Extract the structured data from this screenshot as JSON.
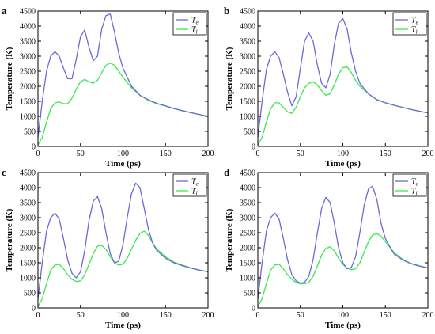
{
  "colors": {
    "electron": "#6a6ad8",
    "lattice": "#3ce850",
    "overlap": "#2f8f86"
  },
  "chart_data": [
    {
      "panel": "a",
      "type": "line",
      "xlabel": "Time (ps)",
      "ylabel": "Temperature (K)",
      "xlim": [
        0,
        200
      ],
      "ylim": [
        0,
        4500
      ],
      "xticks": [
        0,
        50,
        100,
        150,
        200
      ],
      "yticks": [
        0,
        500,
        1000,
        1500,
        2000,
        2500,
        3000,
        3500,
        4000,
        4500
      ],
      "grid": false,
      "legend_position": "top-right",
      "legend": [
        "Te",
        "Tl"
      ],
      "series": [
        {
          "name": "Te",
          "x": [
            0,
            5,
            10,
            15,
            20,
            25,
            30,
            35,
            40,
            45,
            50,
            55,
            60,
            65,
            70,
            75,
            80,
            85,
            90,
            95,
            100,
            110,
            120,
            130,
            140,
            150,
            160,
            170,
            180,
            190,
            200
          ],
          "y": [
            300,
            1500,
            2500,
            3000,
            3150,
            3000,
            2600,
            2250,
            2250,
            2900,
            3650,
            3870,
            3300,
            2850,
            3000,
            3900,
            4350,
            4400,
            3800,
            3100,
            2600,
            2000,
            1700,
            1550,
            1430,
            1350,
            1260,
            1190,
            1120,
            1060,
            1000
          ]
        },
        {
          "name": "Tl",
          "x": [
            0,
            5,
            10,
            15,
            20,
            25,
            30,
            35,
            40,
            45,
            50,
            55,
            60,
            65,
            70,
            75,
            80,
            85,
            90,
            95,
            100,
            110,
            120,
            130,
            140,
            150,
            160,
            170,
            180,
            190,
            200
          ],
          "y": [
            50,
            300,
            800,
            1250,
            1450,
            1480,
            1420,
            1420,
            1600,
            1900,
            2150,
            2230,
            2150,
            2100,
            2200,
            2450,
            2700,
            2770,
            2700,
            2500,
            2300,
            1950,
            1700,
            1530,
            1420,
            1340,
            1260,
            1180,
            1120,
            1060,
            1000
          ]
        }
      ]
    },
    {
      "panel": "b",
      "type": "line",
      "xlabel": "Time (ps)",
      "ylabel": "Temperature (K)",
      "xlim": [
        0,
        200
      ],
      "ylim": [
        0,
        4500
      ],
      "xticks": [
        0,
        50,
        100,
        150,
        200
      ],
      "yticks": [
        0,
        500,
        1000,
        1500,
        2000,
        2500,
        3000,
        3500,
        4000,
        4500
      ],
      "grid": false,
      "legend_position": "top-right",
      "legend": [
        "Te",
        "Tl"
      ],
      "series": [
        {
          "name": "Te",
          "x": [
            0,
            5,
            10,
            15,
            20,
            25,
            30,
            35,
            40,
            45,
            50,
            55,
            60,
            65,
            70,
            75,
            80,
            85,
            90,
            95,
            100,
            105,
            110,
            115,
            120,
            130,
            140,
            150,
            160,
            170,
            180,
            190,
            200
          ],
          "y": [
            300,
            1500,
            2550,
            3000,
            3150,
            2950,
            2400,
            1800,
            1350,
            1650,
            2600,
            3500,
            3780,
            3500,
            2700,
            2100,
            1950,
            2400,
            3400,
            4100,
            4250,
            3900,
            3100,
            2500,
            2100,
            1750,
            1550,
            1450,
            1370,
            1300,
            1230,
            1170,
            1110
          ]
        },
        {
          "name": "Tl",
          "x": [
            0,
            5,
            10,
            15,
            20,
            25,
            30,
            35,
            40,
            45,
            50,
            55,
            60,
            65,
            70,
            75,
            80,
            85,
            90,
            95,
            100,
            105,
            110,
            115,
            120,
            130,
            140,
            150,
            160,
            170,
            180,
            190,
            200
          ],
          "y": [
            50,
            300,
            800,
            1250,
            1450,
            1450,
            1300,
            1150,
            1100,
            1300,
            1650,
            1950,
            2100,
            2150,
            2050,
            1850,
            1700,
            1750,
            2050,
            2400,
            2620,
            2640,
            2450,
            2200,
            2000,
            1750,
            1560,
            1450,
            1370,
            1300,
            1230,
            1170,
            1110
          ]
        }
      ]
    },
    {
      "panel": "c",
      "type": "line",
      "xlabel": "Time (ps)",
      "ylabel": "Temperature (K)",
      "xlim": [
        0,
        200
      ],
      "ylim": [
        0,
        4500
      ],
      "xticks": [
        0,
        50,
        100,
        150,
        200
      ],
      "yticks": [
        0,
        500,
        1000,
        1500,
        2000,
        2500,
        3000,
        3500,
        4000,
        4500
      ],
      "grid": false,
      "legend_position": "top-right",
      "legend": [
        "Te",
        "Tl"
      ],
      "series": [
        {
          "name": "Te",
          "x": [
            0,
            5,
            10,
            15,
            20,
            25,
            30,
            35,
            40,
            45,
            50,
            55,
            60,
            65,
            70,
            75,
            80,
            85,
            90,
            95,
            100,
            105,
            110,
            115,
            120,
            125,
            130,
            135,
            140,
            150,
            160,
            170,
            180,
            190,
            200
          ],
          "y": [
            300,
            1500,
            2550,
            3000,
            3150,
            2950,
            2300,
            1600,
            1150,
            1000,
            1200,
            1900,
            2900,
            3550,
            3700,
            3300,
            2500,
            1800,
            1500,
            1550,
            2100,
            3000,
            3800,
            4150,
            4000,
            3300,
            2600,
            2150,
            1900,
            1650,
            1500,
            1400,
            1320,
            1250,
            1200
          ]
        },
        {
          "name": "Tl",
          "x": [
            0,
            5,
            10,
            15,
            20,
            25,
            30,
            35,
            40,
            45,
            50,
            55,
            60,
            65,
            70,
            75,
            80,
            85,
            90,
            95,
            100,
            105,
            110,
            115,
            120,
            125,
            130,
            135,
            140,
            150,
            160,
            170,
            180,
            190,
            200
          ],
          "y": [
            50,
            300,
            800,
            1250,
            1430,
            1450,
            1300,
            1100,
            950,
            880,
            900,
            1100,
            1450,
            1800,
            2050,
            2080,
            1950,
            1700,
            1500,
            1420,
            1450,
            1650,
            1950,
            2250,
            2480,
            2550,
            2400,
            2150,
            1950,
            1700,
            1520,
            1420,
            1330,
            1260,
            1200
          ]
        }
      ]
    },
    {
      "panel": "d",
      "type": "line",
      "xlabel": "Time (ps)",
      "ylabel": "Temperature (K)",
      "xlim": [
        0,
        200
      ],
      "ylim": [
        0,
        4500
      ],
      "xticks": [
        0,
        50,
        100,
        150,
        200
      ],
      "yticks": [
        0,
        500,
        1000,
        1500,
        2000,
        2500,
        3000,
        3500,
        4000,
        4500
      ],
      "grid": false,
      "legend_position": "top-right",
      "legend": [
        "Te",
        "Tl"
      ],
      "series": [
        {
          "name": "Te",
          "x": [
            0,
            5,
            10,
            15,
            20,
            25,
            30,
            35,
            40,
            45,
            50,
            55,
            60,
            65,
            70,
            75,
            80,
            85,
            90,
            95,
            100,
            105,
            110,
            115,
            120,
            125,
            130,
            135,
            140,
            145,
            150,
            160,
            170,
            180,
            190,
            200
          ],
          "y": [
            300,
            1500,
            2550,
            3000,
            3150,
            2950,
            2300,
            1600,
            1100,
            900,
            820,
            850,
            1050,
            1600,
            2500,
            3300,
            3680,
            3500,
            2800,
            2000,
            1500,
            1300,
            1350,
            1700,
            2500,
            3400,
            3950,
            4050,
            3600,
            2800,
            2300,
            1800,
            1600,
            1470,
            1390,
            1330
          ]
        },
        {
          "name": "Tl",
          "x": [
            0,
            5,
            10,
            15,
            20,
            25,
            30,
            35,
            40,
            45,
            50,
            55,
            60,
            65,
            70,
            75,
            80,
            85,
            90,
            95,
            100,
            105,
            110,
            115,
            120,
            125,
            130,
            135,
            140,
            145,
            150,
            160,
            170,
            180,
            190,
            200
          ],
          "y": [
            50,
            300,
            800,
            1250,
            1430,
            1450,
            1300,
            1100,
            950,
            850,
            800,
            800,
            850,
            1050,
            1400,
            1750,
            1980,
            2030,
            1900,
            1650,
            1450,
            1320,
            1270,
            1300,
            1500,
            1850,
            2200,
            2420,
            2470,
            2380,
            2200,
            1850,
            1620,
            1480,
            1400,
            1330
          ]
        }
      ]
    }
  ]
}
